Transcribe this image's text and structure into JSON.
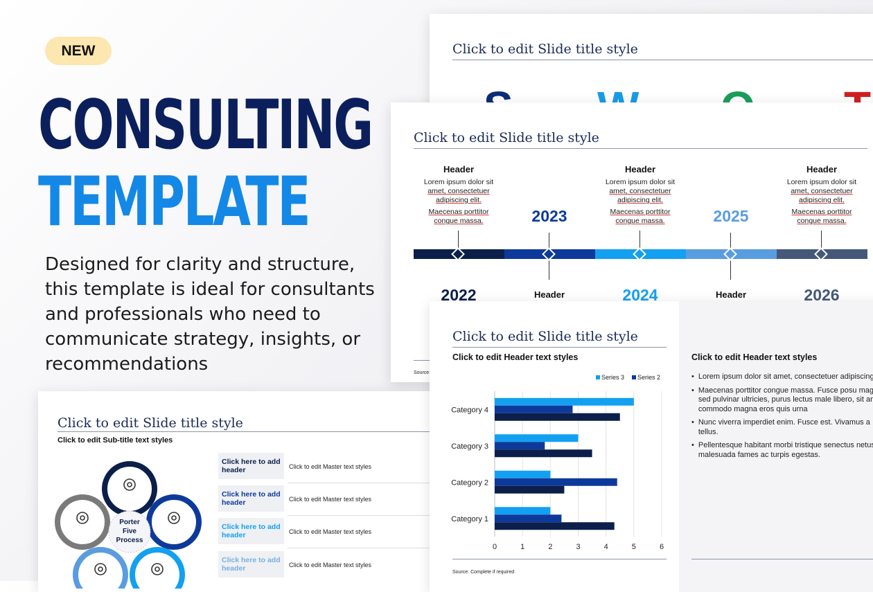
{
  "hero": {
    "badge": "NEW",
    "title_line1": "CONSULTING",
    "title_line2": "TEMPLATE",
    "description": "Designed for clarity and structure, this template is ideal for consultants and professionals who need to communicate strategy, insights, or recommendations"
  },
  "swot_slide": {
    "title": "Click to edit Slide title style",
    "letters": [
      "S",
      "W",
      "O",
      "T"
    ],
    "colors": [
      "#0b2d7a",
      "#1a9be8",
      "#1a9e5a",
      "#d0201f"
    ]
  },
  "timeline_slide": {
    "title": "Click to edit Slide title style",
    "source": "Source:",
    "top_headers": [
      {
        "header": "Header",
        "line1": "Lorem ipsum dolor sit",
        "line2": "amet, consectetuer",
        "line3": "adipiscing elit.",
        "line4": "Maecenas porttitor",
        "line5": "congue massa."
      },
      {
        "header": "Header",
        "line1": "Lorem ipsum dolor sit",
        "line2": "amet, consectetuer",
        "line3": "adipiscing elit.",
        "line4": "Maecenas porttitor",
        "line5": "congue massa."
      },
      {
        "header": "Header",
        "line1": "Lorem ipsum dolor sit",
        "line2": "amet, consectetuer",
        "line3": "adipiscing elit.",
        "line4": "Maecenas porttitor",
        "line5": "congue massa."
      }
    ],
    "upper_years": [
      "2023",
      "2025"
    ],
    "lower_years": [
      "2022",
      "2024",
      "2026"
    ],
    "lower_headers": [
      "Header",
      "Header"
    ],
    "segment_colors": [
      "#0b1f4a",
      "#0d3a9a",
      "#13a0f0",
      "#5a9ce0",
      "#45587a"
    ]
  },
  "chart_slide": {
    "title": "Click to edit Slide title style",
    "header_left": "Click to edit Header text styles",
    "header_right": "Click to edit Header text styles",
    "source": "Source: Complete if required",
    "bullets": [
      "Lorem ipsum dolor sit amet, consectetuer adipiscing elit.",
      "Maecenas porttitor congue massa. Fusce posu magna sed pulvinar ultricies, purus lectus male libero, sit amet commodo magna eros quis urna",
      "Nunc viverra imperdiet enim. Fusce est. Vivamus a tellus.",
      "Pellentesque habitant morbi tristique senectus netus et malesuada fames ac turpis egestas."
    ]
  },
  "chart_data": {
    "type": "bar",
    "orientation": "horizontal",
    "categories": [
      "Category 1",
      "Category 2",
      "Category 3",
      "Category 4"
    ],
    "series": [
      {
        "name": "Series 3",
        "values": [
          2.0,
          2.0,
          3.0,
          5.0
        ],
        "color": "#13a0f0"
      },
      {
        "name": "Series 2",
        "values": [
          2.4,
          4.4,
          1.8,
          2.8
        ],
        "color": "#0d3a9a"
      },
      {
        "name": "",
        "values": [
          4.3,
          2.5,
          3.5,
          4.5
        ],
        "color": "#0b1f4a"
      }
    ],
    "xlim": [
      0,
      6
    ],
    "xticks": [
      "0",
      "1",
      "2",
      "3",
      "4",
      "5",
      "6"
    ],
    "legend": "top-right",
    "grid": true
  },
  "porter_slide": {
    "title": "Click to edit Slide title style",
    "subtitle": "Click to edit Sub-title text styles",
    "center_label": "Porter Five Process",
    "rows": [
      {
        "header": "Click here to add header",
        "text": "Click to edit Master text styles",
        "color": "#0b1f4a"
      },
      {
        "header": "Click here to add header",
        "text": "Click to edit Master text styles",
        "color": "#0d3a9a"
      },
      {
        "header": "Click here to add header",
        "text": "Click to edit Master text styles",
        "color": "#13a0f0"
      },
      {
        "header": "Click here to add header",
        "text": "Click to edit Master text styles",
        "color": "#7aaee0"
      }
    ]
  }
}
